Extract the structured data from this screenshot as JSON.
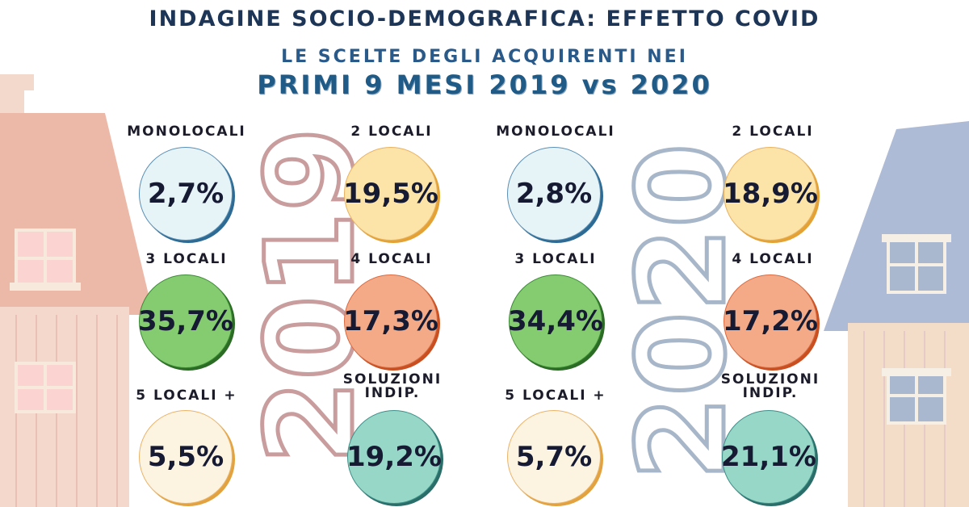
{
  "header": {
    "title": "INDAGINE SOCIO-DEMOGRAFICA: EFFETTO COVID",
    "subtitle": "LE SCELTE DEGLI ACQUIRENTI NEI",
    "period": "PRIMI 9 MESI 2019 vs 2020"
  },
  "years": {
    "y2019": "2019",
    "y2020": "2020"
  },
  "stats_2019": [
    {
      "label": "MONOLOCALI",
      "value": "2,7%"
    },
    {
      "label": "2 LOCALI",
      "value": "19,5%"
    },
    {
      "label": "3 LOCALI",
      "value": "35,7%"
    },
    {
      "label": "4 LOCALI",
      "value": "17,3%"
    },
    {
      "label": "5 LOCALI +",
      "value": "5,5%"
    },
    {
      "label": "SOLUZIONI INDIP.",
      "value": "19,2%"
    }
  ],
  "stats_2020": [
    {
      "label": "MONOLOCALI",
      "value": "2,8%"
    },
    {
      "label": "2 LOCALI",
      "value": "18,9%"
    },
    {
      "label": "3 LOCALI",
      "value": "34,4%"
    },
    {
      "label": "4 LOCALI",
      "value": "17,2%"
    },
    {
      "label": "5 LOCALI +",
      "value": "5,7%"
    },
    {
      "label": "SOLUZIONI INDIP.",
      "value": "21,1%"
    }
  ],
  "colors": {
    "monolocali": "#e6f4f8",
    "due_locali": "#fce3a8",
    "tre_locali": "#85cc71",
    "quattro_locali": "#f4a987",
    "cinque_locali": "#fdf3e1",
    "soluzioni": "#97d7c7",
    "year2019": "#c99d9d",
    "year2020": "#a7b6c8"
  }
}
